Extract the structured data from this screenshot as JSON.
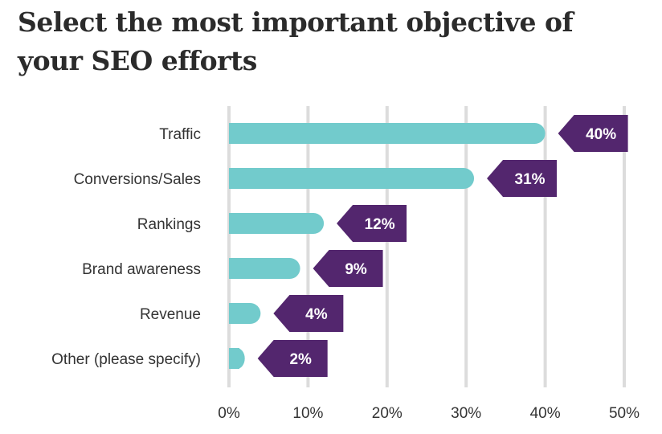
{
  "title": "Select the most important objective of your SEO efforts",
  "colors": {
    "bar": "#72cbcc",
    "tag": "#53266e",
    "grid": "#dcdcdc",
    "text": "#333333"
  },
  "chart_data": {
    "type": "bar",
    "orientation": "horizontal",
    "title": "Select the most important objective of your SEO efforts",
    "categories": [
      "Traffic",
      "Conversions/Sales",
      "Rankings",
      "Brand awareness",
      "Revenue",
      "Other (please specify)"
    ],
    "values": [
      40,
      31,
      12,
      9,
      4,
      2
    ],
    "data_labels": [
      "40%",
      "31%",
      "12%",
      "9%",
      "4%",
      "2%"
    ],
    "xlim": [
      0,
      50
    ],
    "xticks": [
      0,
      10,
      20,
      30,
      40,
      50
    ],
    "xtick_labels": [
      "0%",
      "10%",
      "20%",
      "30%",
      "40%",
      "50%"
    ],
    "grid": "vertical",
    "xlabel": "",
    "ylabel": ""
  }
}
